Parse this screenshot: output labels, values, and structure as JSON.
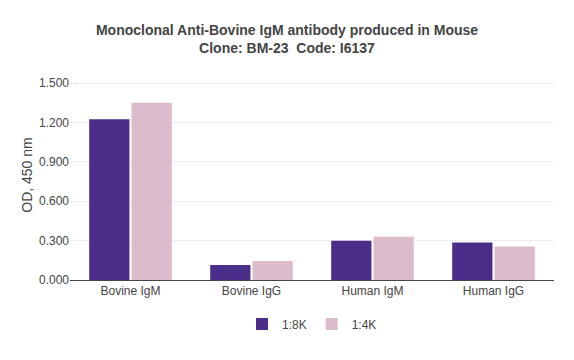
{
  "chart_data": {
    "type": "bar",
    "title": "Monoclonal Anti-Bovine IgM antibody produced in Mouse",
    "subtitle": "Clone: BM-23  Code: I6137",
    "ylabel": "OD, 450 nm",
    "categories": [
      "Bovine IgM",
      "Bovine IgG",
      "Human IgM",
      "Human IgG"
    ],
    "series": [
      {
        "name": "1:8K",
        "color": "#4B2D8A",
        "values": [
          1.225,
          0.115,
          0.3,
          0.285
        ]
      },
      {
        "name": "1:4K",
        "color": "#DCBCCC",
        "values": [
          1.35,
          0.145,
          0.33,
          0.255
        ]
      }
    ],
    "ylim": [
      0,
      1.6
    ],
    "yticks": [
      {
        "value": 0,
        "label": "0.000"
      },
      {
        "value": 0.3,
        "label": "0.300"
      },
      {
        "value": 0.6,
        "label": "0.600"
      },
      {
        "value": 0.9,
        "label": "0.900"
      },
      {
        "value": 1.2,
        "label": "1.200"
      },
      {
        "value": 1.5,
        "label": "1.500"
      }
    ],
    "grid": true,
    "legend": "bottom"
  }
}
